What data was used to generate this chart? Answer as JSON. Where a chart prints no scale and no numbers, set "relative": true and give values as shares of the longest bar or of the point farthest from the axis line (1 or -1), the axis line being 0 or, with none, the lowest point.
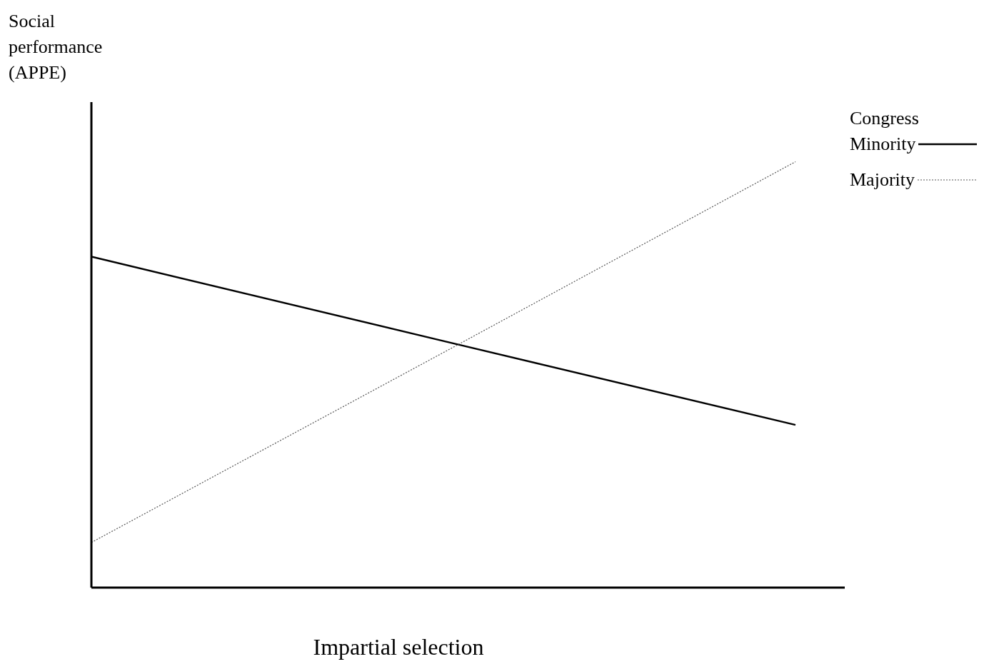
{
  "chart_data": {
    "type": "line",
    "relative": true,
    "ylabel": "Social performance (APPE)",
    "xlabel": "Impartial selection",
    "legend_title": "Congress",
    "legend": "top right",
    "marker": "none",
    "categories": [
      null,
      null,
      null
    ],
    "series": [
      {
        "name": "Minority",
        "color": "#000000",
        "line_style": "solid",
        "values": [
          0.777,
          0.579,
          0.382
        ]
      },
      {
        "name": "Majority",
        "color": "#555555",
        "line_style": "dotted",
        "values": [
          0.106,
          0.552,
          1
        ]
      }
    ]
  }
}
